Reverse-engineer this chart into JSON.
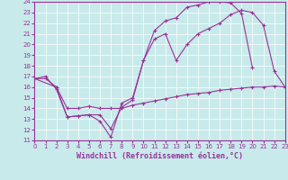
{
  "xlabel": "Windchill (Refroidissement éolien,°C)",
  "xlim": [
    0,
    23
  ],
  "ylim": [
    11,
    24
  ],
  "xticks": [
    0,
    1,
    2,
    3,
    4,
    5,
    6,
    7,
    8,
    9,
    10,
    11,
    12,
    13,
    14,
    15,
    16,
    17,
    18,
    19,
    20,
    21,
    22,
    23
  ],
  "yticks": [
    11,
    12,
    13,
    14,
    15,
    16,
    17,
    18,
    19,
    20,
    21,
    22,
    23,
    24
  ],
  "bg_color": "#c8eaea",
  "line_color": "#993399",
  "grid_color": "#ffffff",
  "s1_x": [
    0,
    1,
    2,
    3,
    4,
    5,
    6,
    7,
    8,
    9,
    10,
    11,
    12,
    13,
    14,
    15,
    16,
    17,
    18,
    19,
    20,
    21,
    22,
    23
  ],
  "s1_y": [
    16.8,
    16.8,
    16.0,
    14.0,
    14.0,
    14.2,
    14.0,
    14.0,
    14.0,
    14.3,
    14.5,
    14.7,
    14.9,
    15.1,
    15.3,
    15.4,
    15.5,
    15.7,
    15.8,
    15.9,
    16.0,
    16.0,
    16.1,
    16.0
  ],
  "s2_x": [
    0,
    2,
    3,
    4,
    5,
    6,
    7,
    8,
    9,
    10,
    11,
    12,
    13,
    14,
    15,
    16,
    17,
    18,
    19,
    20,
    21,
    22,
    23
  ],
  "s2_y": [
    16.8,
    16.0,
    13.2,
    13.3,
    13.4,
    13.4,
    12.1,
    14.1,
    14.8,
    18.5,
    20.5,
    21.0,
    18.5,
    20.0,
    21.0,
    21.5,
    22.0,
    22.8,
    23.2,
    23.0,
    21.8,
    17.5,
    16.0
  ],
  "s3_x": [
    0,
    1,
    2,
    3,
    4,
    5,
    6,
    7,
    8,
    9,
    10,
    11,
    12,
    13,
    14,
    15,
    16,
    17,
    18,
    19,
    20
  ],
  "s3_y": [
    16.8,
    17.0,
    15.8,
    13.2,
    13.3,
    13.4,
    12.8,
    11.3,
    14.5,
    15.0,
    18.5,
    21.3,
    22.2,
    22.5,
    23.5,
    23.7,
    24.0,
    24.0,
    23.9,
    22.9,
    17.8
  ],
  "markersize": 2.0,
  "linewidth": 0.8,
  "font_size_xlabel": 6,
  "tick_labelsize": 5
}
